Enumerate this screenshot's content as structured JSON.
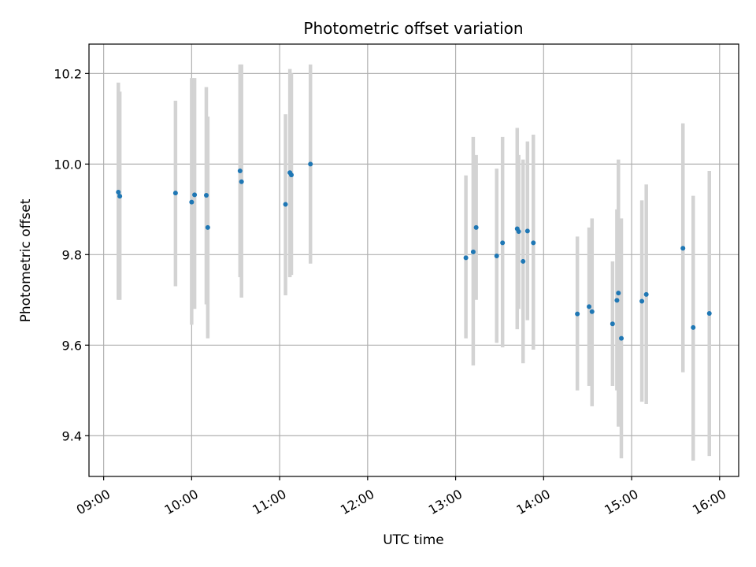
{
  "chart_data": {
    "type": "scatter",
    "title": "Photometric offset variation",
    "xlabel": "UTC time",
    "ylabel": "Photometric offset",
    "x_unit": "UTC time (HH:MM)",
    "xlim": [
      "08:50",
      "16:13"
    ],
    "ylim": [
      9.31,
      10.265
    ],
    "grid": true,
    "x_ticks": [
      "09:00",
      "10:00",
      "11:00",
      "12:00",
      "13:00",
      "14:00",
      "15:00",
      "16:00"
    ],
    "y_ticks": [
      9.4,
      9.6,
      9.8,
      10.0,
      10.2
    ],
    "y_tick_labels": [
      "9.4",
      "9.6",
      "9.8",
      "10.0",
      "10.2"
    ],
    "colors": {
      "marker": "#1f77b4",
      "errorbar": "#d3d3d3",
      "grid": "#b0b0b0"
    },
    "points": [
      {
        "x": "09:10",
        "y": 9.938,
        "lo": 9.7,
        "hi": 10.18
      },
      {
        "x": "09:11",
        "y": 9.929,
        "lo": 9.7,
        "hi": 10.16
      },
      {
        "x": "09:49",
        "y": 9.936,
        "lo": 9.73,
        "hi": 10.14
      },
      {
        "x": "10:00",
        "y": 9.916,
        "lo": 9.645,
        "hi": 10.19
      },
      {
        "x": "10:02",
        "y": 9.932,
        "lo": 9.68,
        "hi": 10.19
      },
      {
        "x": "10:10",
        "y": 9.931,
        "lo": 9.69,
        "hi": 10.17
      },
      {
        "x": "10:11",
        "y": 9.86,
        "lo": 9.615,
        "hi": 10.105
      },
      {
        "x": "10:33",
        "y": 9.985,
        "lo": 9.75,
        "hi": 10.22
      },
      {
        "x": "10:34",
        "y": 9.961,
        "lo": 9.705,
        "hi": 10.22
      },
      {
        "x": "11:04",
        "y": 9.911,
        "lo": 9.71,
        "hi": 10.11
      },
      {
        "x": "11:07",
        "y": 9.981,
        "lo": 9.75,
        "hi": 10.21
      },
      {
        "x": "11:08",
        "y": 9.976,
        "lo": 9.755,
        "hi": 10.2
      },
      {
        "x": "11:21",
        "y": 10.0,
        "lo": 9.78,
        "hi": 10.22
      },
      {
        "x": "13:07",
        "y": 9.793,
        "lo": 9.615,
        "hi": 9.975
      },
      {
        "x": "13:12",
        "y": 9.806,
        "lo": 9.555,
        "hi": 10.06
      },
      {
        "x": "13:14",
        "y": 9.86,
        "lo": 9.7,
        "hi": 10.02
      },
      {
        "x": "13:28",
        "y": 9.797,
        "lo": 9.605,
        "hi": 9.99
      },
      {
        "x": "13:32",
        "y": 9.826,
        "lo": 9.595,
        "hi": 10.06
      },
      {
        "x": "13:42",
        "y": 9.857,
        "lo": 9.635,
        "hi": 10.08
      },
      {
        "x": "13:43",
        "y": 9.851,
        "lo": 9.68,
        "hi": 10.02
      },
      {
        "x": "13:46",
        "y": 9.785,
        "lo": 9.56,
        "hi": 10.01
      },
      {
        "x": "13:49",
        "y": 9.852,
        "lo": 9.655,
        "hi": 10.05
      },
      {
        "x": "13:53",
        "y": 9.826,
        "lo": 9.59,
        "hi": 10.065
      },
      {
        "x": "14:23",
        "y": 9.669,
        "lo": 9.5,
        "hi": 9.84
      },
      {
        "x": "14:31",
        "y": 9.685,
        "lo": 9.51,
        "hi": 9.86
      },
      {
        "x": "14:33",
        "y": 9.674,
        "lo": 9.465,
        "hi": 9.88
      },
      {
        "x": "14:47",
        "y": 9.647,
        "lo": 9.51,
        "hi": 9.785
      },
      {
        "x": "14:50",
        "y": 9.699,
        "lo": 9.5,
        "hi": 9.9
      },
      {
        "x": "14:51",
        "y": 9.715,
        "lo": 9.42,
        "hi": 10.01
      },
      {
        "x": "14:53",
        "y": 9.615,
        "lo": 9.35,
        "hi": 9.88
      },
      {
        "x": "15:07",
        "y": 9.697,
        "lo": 9.475,
        "hi": 9.92
      },
      {
        "x": "15:10",
        "y": 9.712,
        "lo": 9.47,
        "hi": 9.955
      },
      {
        "x": "15:35",
        "y": 9.814,
        "lo": 9.54,
        "hi": 10.09
      },
      {
        "x": "15:42",
        "y": 9.639,
        "lo": 9.345,
        "hi": 9.93
      },
      {
        "x": "15:53",
        "y": 9.67,
        "lo": 9.355,
        "hi": 9.985
      }
    ]
  }
}
